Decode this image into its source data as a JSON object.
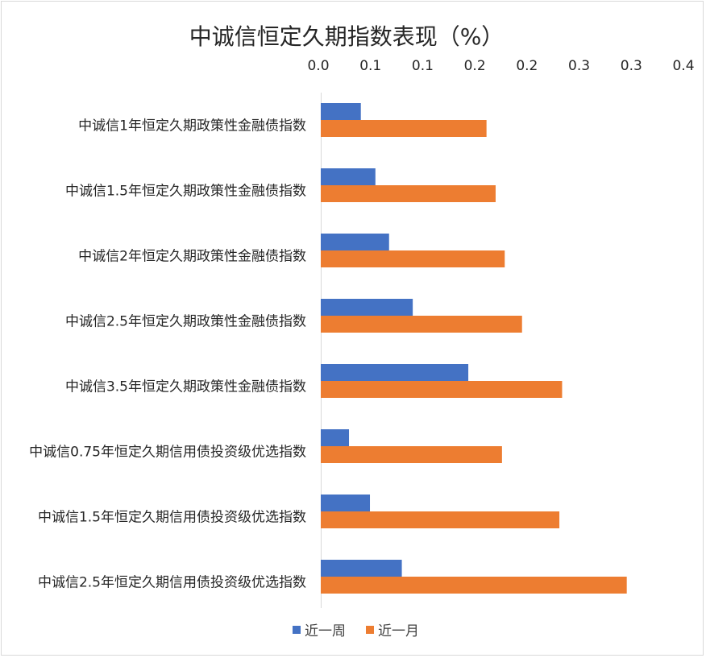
{
  "chart_data": {
    "type": "bar",
    "orientation": "horizontal",
    "title": "中诚信恒定久期指数表现（%）",
    "xlabel": "",
    "ylabel": "",
    "xlim": [
      0.0,
      0.4
    ],
    "x_ticks": [
      "0.0",
      "0.1",
      "0.1",
      "0.2",
      "0.2",
      "0.3",
      "0.3",
      "0.4"
    ],
    "x_axis_position": "top",
    "grid": false,
    "legend_position": "bottom",
    "categories": [
      "中诚信1年恒定久期政策性金融债指数",
      "中诚信1.5年恒定久期政策性金融债指数",
      "中诚信2年恒定久期政策性金融债指数",
      "中诚信2.5年恒定久期政策性金融债指数",
      "中诚信3.5年恒定久期政策性金融债指数",
      "中诚信0.75年恒定久期信用债投资级优选指数",
      "中诚信1.5年恒定久期信用债投资级优选指数",
      "中诚信2.5年恒定久期信用债投资级优选指数"
    ],
    "series": [
      {
        "name": "近一周",
        "color": "#4472C4",
        "values": [
          0.044,
          0.06,
          0.075,
          0.101,
          0.162,
          0.031,
          0.054,
          0.089
        ]
      },
      {
        "name": "近一月",
        "color": "#ED7D31",
        "values": [
          0.182,
          0.192,
          0.202,
          0.221,
          0.265,
          0.199,
          0.262,
          0.336
        ]
      }
    ]
  }
}
